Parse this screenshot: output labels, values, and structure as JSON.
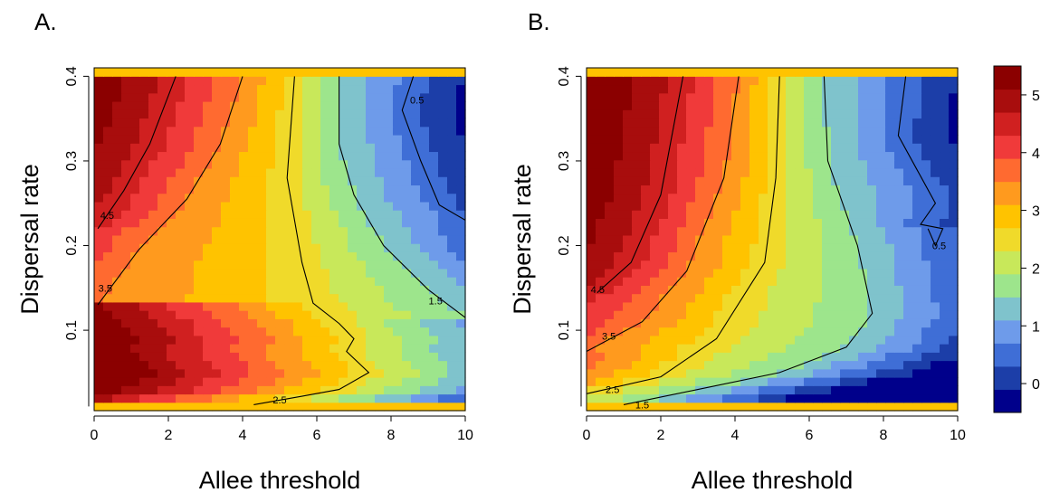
{
  "figure": {
    "panels": [
      "A.",
      "B."
    ]
  },
  "colorbar": {
    "ticks": [
      "5",
      "4",
      "3",
      "2",
      "1",
      "0"
    ],
    "tick_values": [
      5,
      4,
      3,
      2,
      1,
      0
    ],
    "range": [
      -0.5,
      5.5
    ],
    "colors_low_to_high": [
      "#00008B",
      "#1C3EA8",
      "#3F6ED6",
      "#6E9BEA",
      "#7FC3CC",
      "#9DE58C",
      "#C8E85A",
      "#F0DA2A",
      "#FFC300",
      "#FF9A1E",
      "#FF6A30",
      "#F03A3A",
      "#D02020",
      "#A80D0D",
      "#8B0000"
    ]
  },
  "chart_data": [
    {
      "type": "heatmap",
      "panel_label": "A.",
      "xlabel": "Allee threshold",
      "ylabel": "Dispersal rate",
      "xlim": [
        0,
        10
      ],
      "ylim": [
        0.005,
        0.41
      ],
      "x_ticks": [
        "0",
        "2",
        "4",
        "6",
        "8",
        "10"
      ],
      "y_ticks": [
        "0.1",
        "0.2",
        "0.3",
        "0.4"
      ],
      "contours": [
        {
          "level": "4.5",
          "points": [
            [
              0.1,
              0.22
            ],
            [
              0.8,
              0.265
            ],
            [
              1.5,
              0.32
            ],
            [
              2.2,
              0.4
            ]
          ],
          "label_at": [
            0.35,
            0.236
          ]
        },
        {
          "level": "3.5",
          "points": [
            [
              0.1,
              0.13
            ],
            [
              1.2,
              0.195
            ],
            [
              2.5,
              0.255
            ],
            [
              3.4,
              0.32
            ],
            [
              4.0,
              0.4
            ]
          ],
          "label_at": [
            0.3,
            0.15
          ]
        },
        {
          "level": "2.5",
          "points": [
            [
              4.3,
              0.012
            ],
            [
              5.6,
              0.022
            ],
            [
              6.6,
              0.03
            ],
            [
              7.4,
              0.05
            ],
            [
              6.8,
              0.075
            ],
            [
              7.0,
              0.09
            ],
            [
              6.6,
              0.108
            ],
            [
              5.9,
              0.132
            ],
            [
              5.6,
              0.18
            ],
            [
              5.2,
              0.28
            ],
            [
              5.4,
              0.4
            ]
          ],
          "label_at": [
            5.0,
            0.018
          ]
        },
        {
          "level": "1.5",
          "points": [
            [
              10.0,
              0.115
            ],
            [
              9.0,
              0.148
            ],
            [
              7.8,
              0.2
            ],
            [
              7.0,
              0.26
            ],
            [
              6.6,
              0.32
            ],
            [
              6.6,
              0.4
            ]
          ],
          "label_at": [
            9.2,
            0.135
          ]
        },
        {
          "level": "0.5",
          "points": [
            [
              10.0,
              0.23
            ],
            [
              9.3,
              0.248
            ],
            [
              8.8,
              0.3
            ],
            [
              8.3,
              0.36
            ],
            [
              8.6,
              0.4
            ]
          ],
          "label_at": [
            8.7,
            0.372
          ]
        }
      ]
    },
    {
      "type": "heatmap",
      "panel_label": "B.",
      "xlabel": "Allee threshold",
      "ylabel": "Dispersal rate",
      "xlim": [
        0,
        10
      ],
      "ylim": [
        0.005,
        0.41
      ],
      "x_ticks": [
        "0",
        "2",
        "4",
        "6",
        "8",
        "10"
      ],
      "y_ticks": [
        "0.1",
        "0.2",
        "0.3",
        "0.4"
      ],
      "contours": [
        {
          "level": "4.5",
          "points": [
            [
              0.3,
              0.145
            ],
            [
              1.2,
              0.18
            ],
            [
              2.0,
              0.26
            ],
            [
              2.6,
              0.4
            ]
          ],
          "label_at": [
            0.3,
            0.148
          ]
        },
        {
          "level": "3.5",
          "points": [
            [
              0.0,
              0.075
            ],
            [
              1.5,
              0.11
            ],
            [
              2.7,
              0.17
            ],
            [
              3.7,
              0.28
            ],
            [
              4.1,
              0.4
            ]
          ],
          "label_at": [
            0.6,
            0.093
          ]
        },
        {
          "level": "2.5",
          "points": [
            [
              0.0,
              0.025
            ],
            [
              2.0,
              0.045
            ],
            [
              3.5,
              0.09
            ],
            [
              4.8,
              0.18
            ],
            [
              5.1,
              0.28
            ],
            [
              5.2,
              0.4
            ]
          ],
          "label_at": [
            0.7,
            0.03
          ]
        },
        {
          "level": "1.5",
          "points": [
            [
              1.0,
              0.012
            ],
            [
              3.0,
              0.03
            ],
            [
              5.2,
              0.05
            ],
            [
              7.0,
              0.08
            ],
            [
              7.7,
              0.12
            ],
            [
              7.3,
              0.2
            ],
            [
              6.5,
              0.3
            ],
            [
              6.4,
              0.4
            ]
          ],
          "label_at": [
            1.5,
            0.012
          ]
        },
        {
          "level": "0.5",
          "points": [
            [
              8.6,
              0.4
            ],
            [
              8.4,
              0.33
            ],
            [
              8.9,
              0.29
            ],
            [
              9.4,
              0.25
            ],
            [
              9.0,
              0.225
            ],
            [
              9.6,
              0.22
            ],
            [
              9.4,
              0.2
            ],
            [
              9.2,
              0.22
            ]
          ],
          "label_at": [
            9.5,
            0.2
          ]
        }
      ]
    }
  ]
}
